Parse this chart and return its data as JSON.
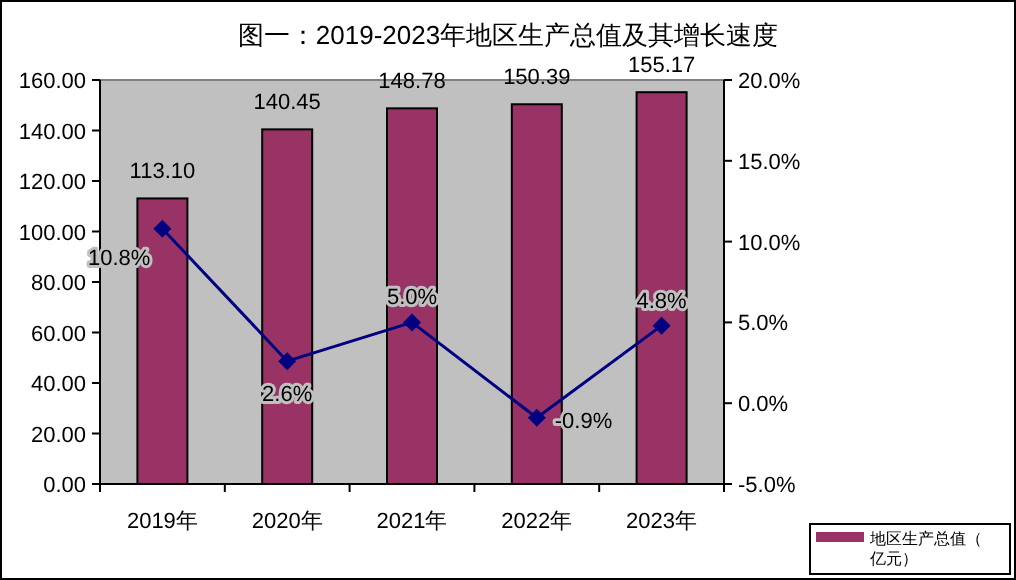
{
  "chart_data": {
    "type": "bar",
    "title": "图一：2019-2023年地区生产总值及其增长速度",
    "categories": [
      "2019年",
      "2020年",
      "2021年",
      "2022年",
      "2023年"
    ],
    "series": [
      {
        "name": "地区生产总值（亿元）",
        "color": "#993366",
        "values": [
          113.1,
          140.45,
          148.78,
          150.39,
          155.17
        ],
        "value_labels": [
          "113.10",
          "140.45",
          "148.78",
          "150.39",
          "155.17"
        ]
      },
      {
        "type": "line",
        "axis": "y2",
        "color": "#000080",
        "marker": "diamond",
        "values": [
          10.8,
          2.6,
          5.0,
          -0.9,
          4.8
        ],
        "value_labels": [
          "10.8%",
          "2.6%",
          "5.0%",
          "-0.9%",
          "4.8%"
        ]
      }
    ],
    "ylim": [
      0,
      160
    ],
    "yticks": [
      {
        "value": 0,
        "label": "0.00"
      },
      {
        "value": 20,
        "label": "20.00"
      },
      {
        "value": 40,
        "label": "40.00"
      },
      {
        "value": 60,
        "label": "60.00"
      },
      {
        "value": 80,
        "label": "80.00"
      },
      {
        "value": 100,
        "label": "100.00"
      },
      {
        "value": 120,
        "label": "120.00"
      },
      {
        "value": 140,
        "label": "140.00"
      },
      {
        "value": 160,
        "label": "160.00"
      }
    ],
    "y2lim": [
      -5,
      20
    ],
    "y2ticks": [
      {
        "value": -5,
        "label": "-5.0%"
      },
      {
        "value": 0,
        "label": "0.0%"
      },
      {
        "value": 5,
        "label": "5.0%"
      },
      {
        "value": 10,
        "label": "10.0%"
      },
      {
        "value": 15,
        "label": "15.0%"
      },
      {
        "value": 20,
        "label": "20.0%"
      }
    ],
    "legend": "bottom right"
  }
}
